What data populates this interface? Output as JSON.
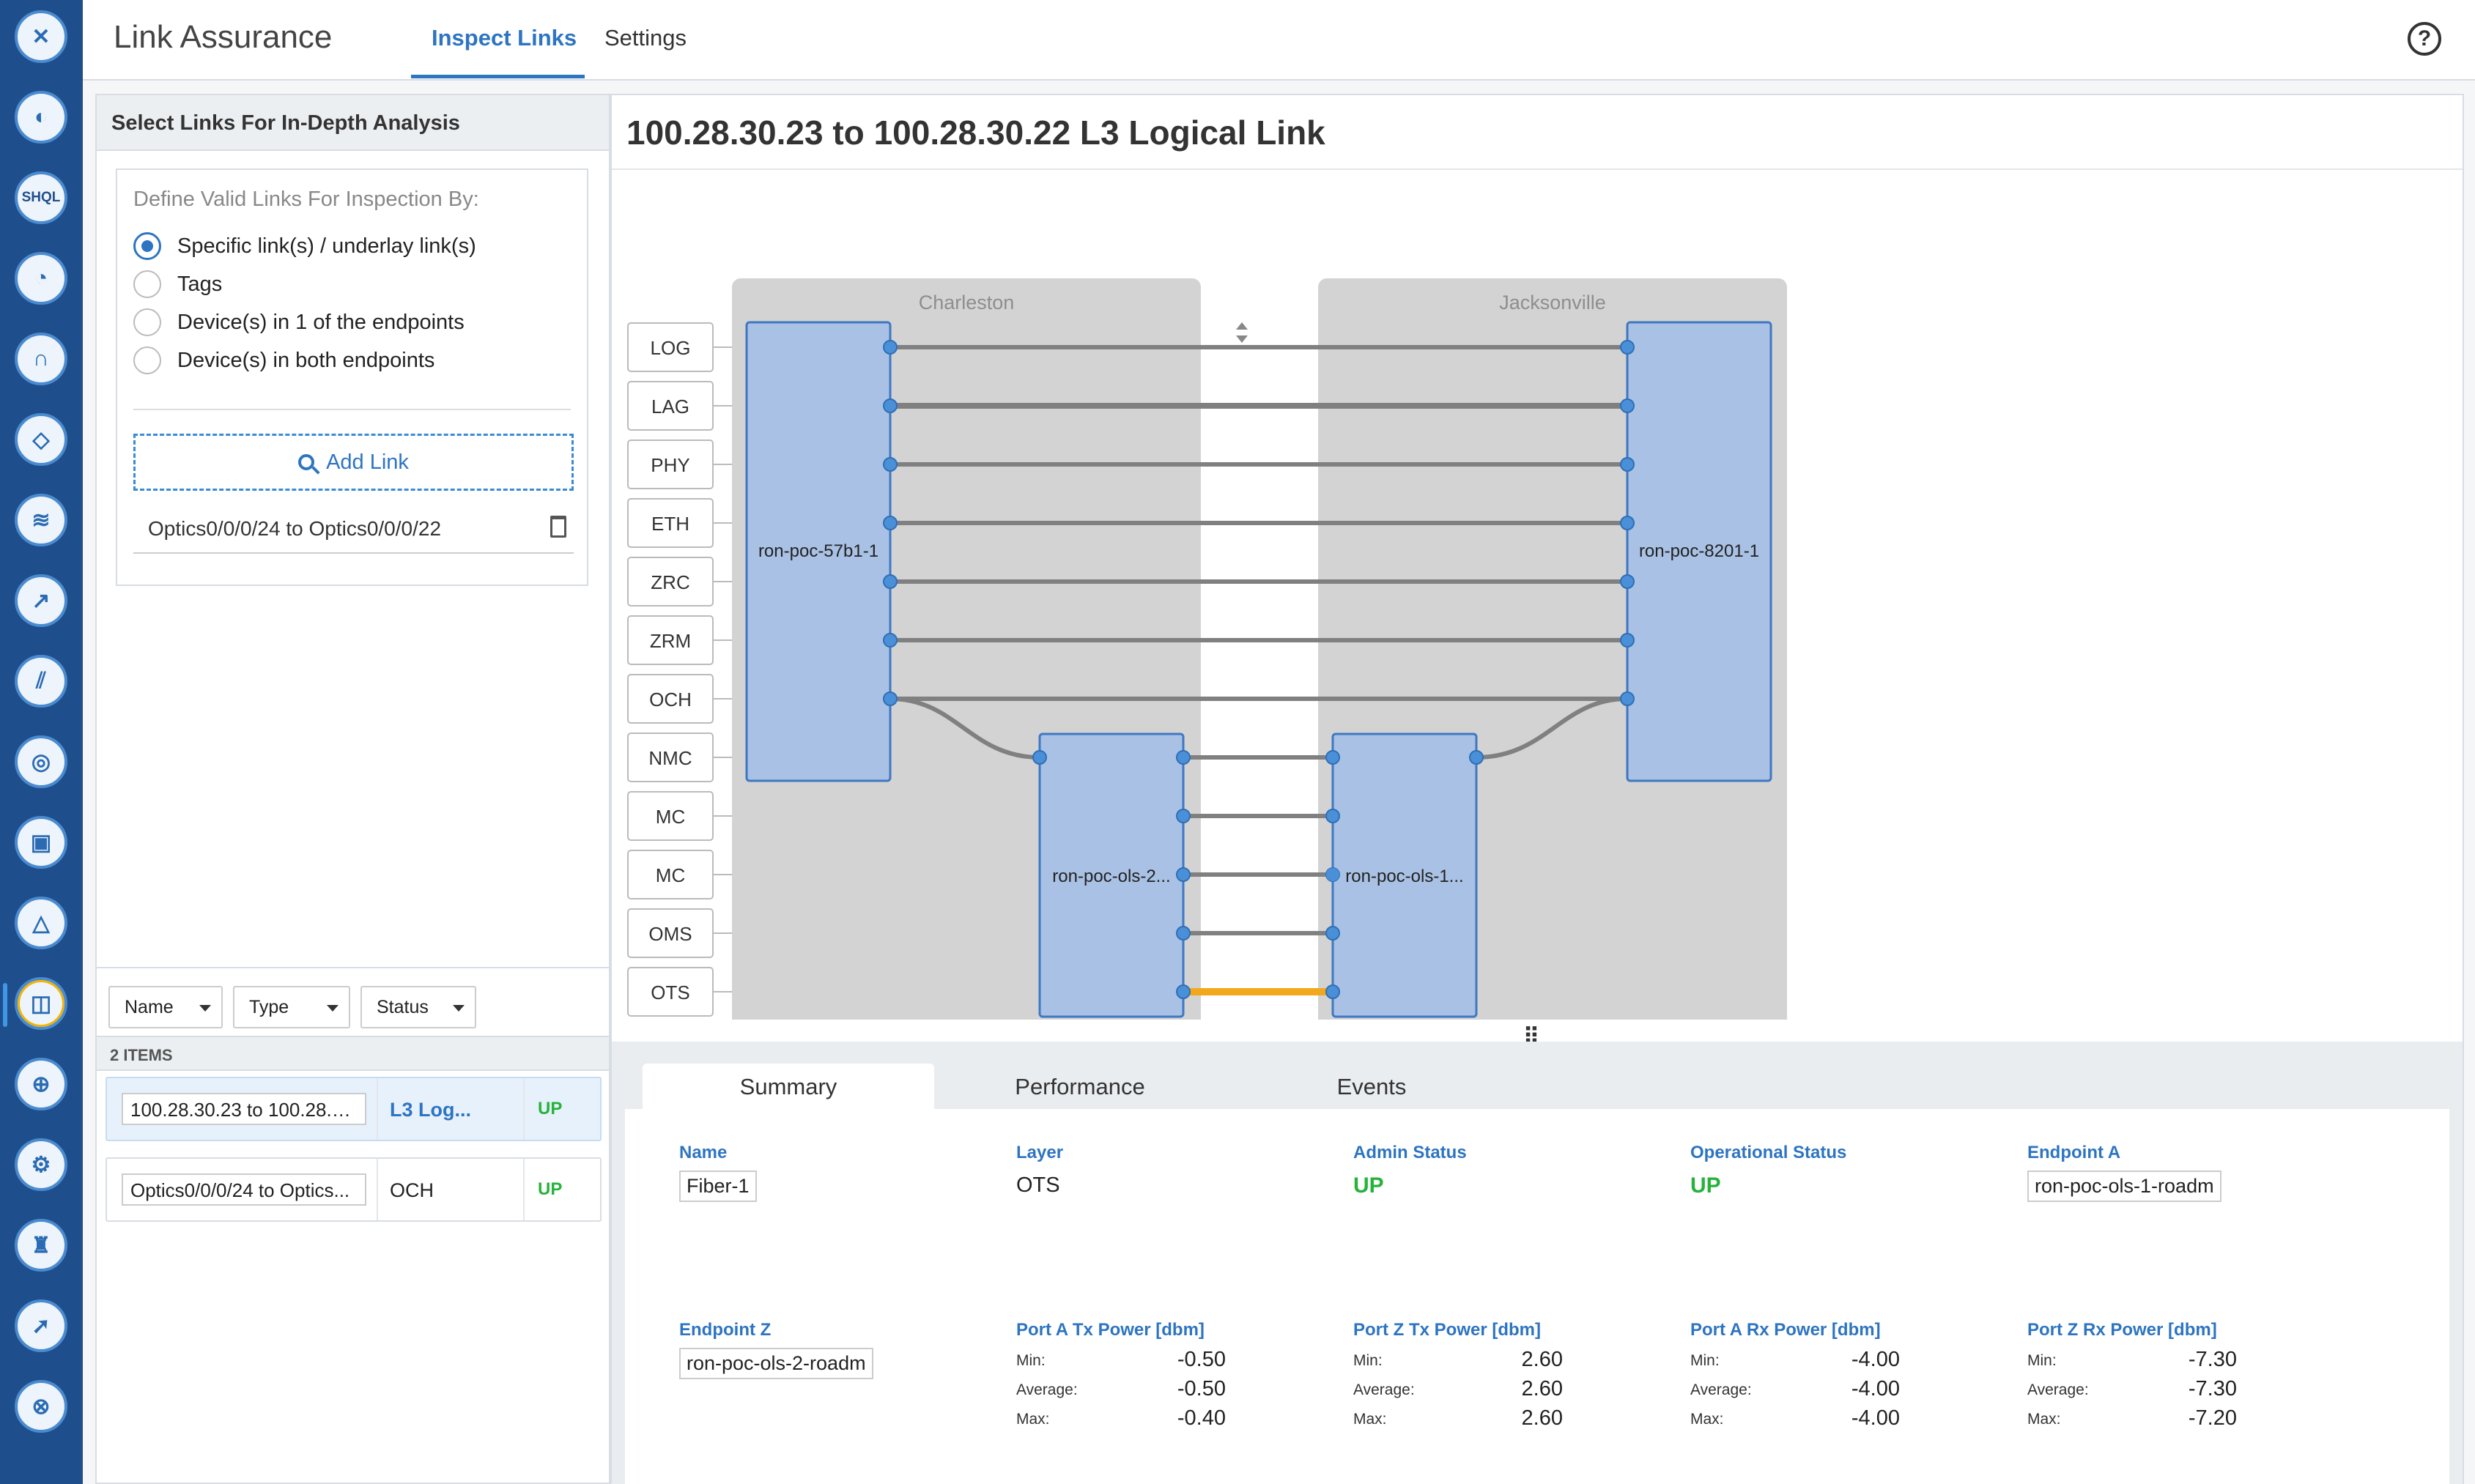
{
  "header": {
    "app_title": "Link Assurance",
    "tabs": [
      {
        "label": "Inspect Links",
        "active": true
      },
      {
        "label": "Settings",
        "active": false
      }
    ],
    "help_icon": "question-circle-icon"
  },
  "rail": {
    "icons": [
      "home-icon",
      "chart-pie-icon",
      "shql-icon",
      "weather-icon",
      "magnet-icon",
      "chat-icon",
      "layers-icon",
      "trend-icon",
      "bars-icon",
      "monitor-icon",
      "clipboard-icon",
      "triangle-icon",
      "link-assurance-icon",
      "compass-icon",
      "settings-icon",
      "tower-icon",
      "arrow-icon",
      "globe-icon"
    ],
    "shql_label": "SHQL"
  },
  "left": {
    "panel_title": "Select Links For In-Depth Analysis",
    "define_label": "Define Valid Links For Inspection By:",
    "options": [
      {
        "label": "Specific link(s) / underlay link(s)",
        "checked": true
      },
      {
        "label": "Tags",
        "checked": false
      },
      {
        "label": "Device(s) in 1 of the endpoints",
        "checked": false
      },
      {
        "label": "Device(s) in both endpoints",
        "checked": false
      }
    ],
    "add_link": "Add Link",
    "selected_link": "Optics0/0/0/24 to Optics0/0/0/22",
    "filters": [
      "Name",
      "Type",
      "Status"
    ],
    "items_count": "2 ITEMS",
    "rows": [
      {
        "name": "100.28.30.23 to 100.28.3...",
        "type": "L3 Log...",
        "status": "UP",
        "selected": true
      },
      {
        "name": "Optics0/0/0/24 to Optics...",
        "type": "OCH",
        "status": "UP",
        "selected": false
      }
    ]
  },
  "main": {
    "title": "100.28.30.23 to 100.28.30.22 L3 Logical Link",
    "sites": [
      "Charleston",
      "Jacksonville"
    ],
    "layers": [
      "LOG",
      "LAG",
      "PHY",
      "ETH",
      "ZRC",
      "ZRM",
      "OCH",
      "NMC",
      "MC",
      "MC",
      "OMS",
      "OTS"
    ],
    "devices": {
      "a_router": "ron-poc-57b1-1",
      "z_router": "ron-poc-8201-1",
      "a_ols": "ron-poc-ols-2...",
      "z_ols": "ron-poc-ols-1..."
    },
    "colors": {
      "node_fill": "#a9c1e4",
      "node_stroke": "#3f78c2",
      "link": "#808080",
      "highlight": "#f2a81d",
      "site_bg": "#d3d3d3"
    }
  },
  "details": {
    "tabs": [
      "Summary",
      "Performance",
      "Events"
    ],
    "active_tab": "Summary",
    "name_label": "Name",
    "name": "Fiber-1",
    "layer_label": "Layer",
    "layer": "OTS",
    "admin_label": "Admin Status",
    "admin": "UP",
    "oper_label": "Operational Status",
    "oper": "UP",
    "epa_label": "Endpoint A",
    "epa": "ron-poc-ols-1-roadm",
    "epz_label": "Endpoint Z",
    "epz": "ron-poc-ols-2-roadm",
    "stat_keys": {
      "min": "Min:",
      "avg": "Average:",
      "max": "Max:"
    },
    "power": [
      {
        "label": "Port A Tx Power [dbm]",
        "min": "-0.50",
        "avg": "-0.50",
        "max": "-0.40"
      },
      {
        "label": "Port Z Tx Power [dbm]",
        "min": "2.60",
        "avg": "2.60",
        "max": "2.60"
      },
      {
        "label": "Port A Rx Power [dbm]",
        "min": "-4.00",
        "avg": "-4.00",
        "max": "-4.00"
      },
      {
        "label": "Port Z Rx Power [dbm]",
        "min": "-7.30",
        "avg": "-7.30",
        "max": "-7.20"
      }
    ]
  }
}
